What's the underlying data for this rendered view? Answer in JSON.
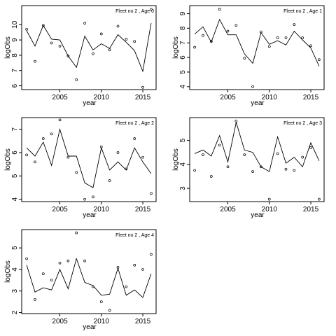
{
  "chart_data": [
    {
      "type": "line",
      "title": "Fleet no 2 , Age 0",
      "xlabel": "year",
      "ylabel": "logObs",
      "xlim": [
        2000.4,
        2016.6
      ],
      "ylim": [
        5.75,
        11.25
      ],
      "xticks": [
        2005,
        2010,
        2015
      ],
      "yticks": [
        6,
        7,
        8,
        9,
        10
      ],
      "x": [
        2001,
        2002,
        2003,
        2004,
        2005,
        2006,
        2007,
        2008,
        2009,
        2010,
        2011,
        2012,
        2013,
        2014,
        2015,
        2016
      ],
      "series": [
        {
          "style": "line",
          "values": [
            9.6,
            8.6,
            9.95,
            9.05,
            9.0,
            7.95,
            7.2,
            9.25,
            8.35,
            8.75,
            8.45,
            9.35,
            8.85,
            8.3,
            6.95,
            10.1
          ]
        },
        {
          "style": "points",
          "values": [
            9.7,
            7.6,
            9.95,
            8.8,
            8.6,
            7.95,
            6.4,
            10.1,
            8.1,
            9.4,
            8.35,
            9.9,
            9.05,
            8.9,
            5.9,
            11.0
          ]
        }
      ]
    },
    {
      "type": "line",
      "title": "Fleet no 2 , Age 1",
      "xlabel": "year",
      "ylabel": "logObs",
      "xlim": [
        2000.4,
        2016.6
      ],
      "ylim": [
        3.8,
        9.55
      ],
      "xticks": [
        2005,
        2010,
        2015
      ],
      "yticks": [
        4,
        5,
        6,
        7,
        8,
        9
      ],
      "x": [
        2001,
        2002,
        2003,
        2004,
        2005,
        2006,
        2007,
        2008,
        2009,
        2010,
        2011,
        2012,
        2013,
        2014,
        2015,
        2016
      ],
      "series": [
        {
          "style": "line",
          "values": [
            7.6,
            8.1,
            7.05,
            8.6,
            7.55,
            7.55,
            6.25,
            5.6,
            7.7,
            6.9,
            7.15,
            6.85,
            7.8,
            7.2,
            6.65,
            5.4
          ]
        },
        {
          "style": "points",
          "values": [
            6.7,
            7.5,
            7.1,
            9.3,
            7.8,
            8.2,
            5.95,
            4.0,
            7.75,
            6.75,
            7.35,
            7.35,
            8.25,
            7.35,
            6.8,
            5.85
          ]
        }
      ]
    },
    {
      "type": "line",
      "title": "Fleet no 2 , Age 2",
      "xlabel": "year",
      "ylabel": "logObs",
      "xlim": [
        2000.4,
        2016.6
      ],
      "ylim": [
        3.9,
        7.5
      ],
      "xticks": [
        2005,
        2010,
        2015
      ],
      "yticks": [
        4.0,
        5.0,
        6.0,
        7.0
      ],
      "x": [
        2001,
        2002,
        2003,
        2004,
        2005,
        2006,
        2007,
        2008,
        2009,
        2010,
        2011,
        2012,
        2013,
        2014,
        2015,
        2016
      ],
      "series": [
        {
          "style": "line",
          "values": [
            6.2,
            5.85,
            6.45,
            5.45,
            7.0,
            5.85,
            5.85,
            4.7,
            4.5,
            6.2,
            5.25,
            5.6,
            5.25,
            6.2,
            5.6,
            5.1
          ]
        },
        {
          "style": "points",
          "values": [
            5.9,
            5.6,
            6.6,
            6.8,
            7.4,
            5.8,
            5.15,
            4.0,
            4.1,
            6.25,
            4.8,
            6.0,
            5.3,
            6.6,
            5.8,
            4.25
          ]
        }
      ]
    },
    {
      "type": "line",
      "title": "Fleet no 2 , Age 3",
      "xlabel": "year",
      "ylabel": "logObs",
      "xlim": [
        2000.4,
        2016.6
      ],
      "ylim": [
        2.45,
        5.95
      ],
      "xticks": [
        2005,
        2010,
        2015
      ],
      "yticks": [
        3.0,
        4.0,
        5.0
      ],
      "x": [
        2001,
        2002,
        2003,
        2004,
        2005,
        2006,
        2007,
        2008,
        2009,
        2010,
        2011,
        2012,
        2013,
        2014,
        2015,
        2016
      ],
      "series": [
        {
          "style": "line",
          "values": [
            4.45,
            4.6,
            4.35,
            5.2,
            4.1,
            5.75,
            4.6,
            4.5,
            3.9,
            3.7,
            5.15,
            4.05,
            4.3,
            3.9,
            4.9,
            4.15
          ]
        },
        {
          "style": "points",
          "values": [
            3.75,
            4.4,
            3.5,
            4.8,
            3.9,
            5.8,
            4.4,
            3.7,
            3.9,
            2.55,
            4.45,
            3.8,
            3.75,
            4.3,
            4.7,
            2.55
          ]
        }
      ]
    },
    {
      "type": "line",
      "title": "Fleet no 2 , Age 4",
      "xlabel": "year",
      "ylabel": "logObs",
      "xlim": [
        2000.4,
        2016.6
      ],
      "ylim": [
        1.95,
        5.85
      ],
      "xticks": [
        2005,
        2010,
        2015
      ],
      "yticks": [
        2,
        3,
        4,
        5
      ],
      "x": [
        2001,
        2002,
        2003,
        2004,
        2005,
        2006,
        2007,
        2008,
        2009,
        2010,
        2011,
        2012,
        2013,
        2014,
        2015,
        2016
      ],
      "series": [
        {
          "style": "line",
          "values": [
            4.2,
            2.95,
            3.15,
            3.05,
            4.0,
            3.1,
            4.5,
            3.4,
            3.25,
            2.8,
            2.85,
            4.05,
            2.8,
            3.05,
            2.7,
            3.8
          ]
        },
        {
          "style": "points",
          "values": [
            4.5,
            2.6,
            3.8,
            3.5,
            4.3,
            4.4,
            5.7,
            4.4,
            3.2,
            2.5,
            2.1,
            4.1,
            3.2,
            4.2,
            4.0,
            4.7
          ]
        }
      ]
    }
  ]
}
